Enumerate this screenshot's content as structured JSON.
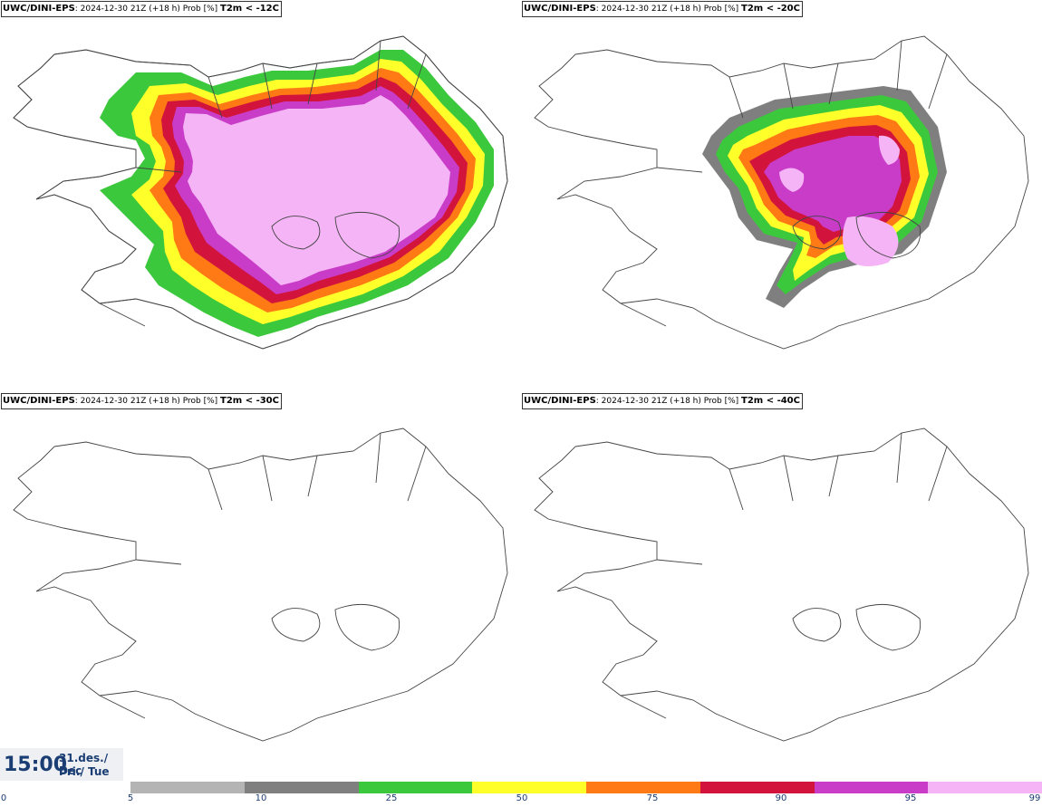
{
  "panels": [
    {
      "source": "UWC/DINI-EPS",
      "meta": ": 2024-12-30 21Z (+18 h) Prob [%] ",
      "variable": "T2m < -12C"
    },
    {
      "source": "UWC/DINI-EPS",
      "meta": ": 2024-12-30 21Z (+18 h) Prob [%] ",
      "variable": "T2m < -20C"
    },
    {
      "source": "UWC/DINI-EPS",
      "meta": ": 2024-12-30 21Z (+18 h) Prob [%] ",
      "variable": "T2m < -30C"
    },
    {
      "source": "UWC/DINI-EPS",
      "meta": ": 2024-12-30 21Z (+18 h) Prob [%] ",
      "variable": "T2m < -40C"
    }
  ],
  "time": {
    "clock": "15:00",
    "date": "31.des./ Dec",
    "weekday": "Þri./ Tue"
  },
  "legend": {
    "ticks": [
      "0",
      "5",
      "10",
      "25",
      "50",
      "75",
      "90",
      "95",
      "99"
    ],
    "colors": [
      "#b4b4b4",
      "#7f7f7f",
      "#3cc83c",
      "#ffff2a",
      "#ff7a14",
      "#d2143c",
      "#c83cc8",
      "#f5b4f5"
    ]
  }
}
